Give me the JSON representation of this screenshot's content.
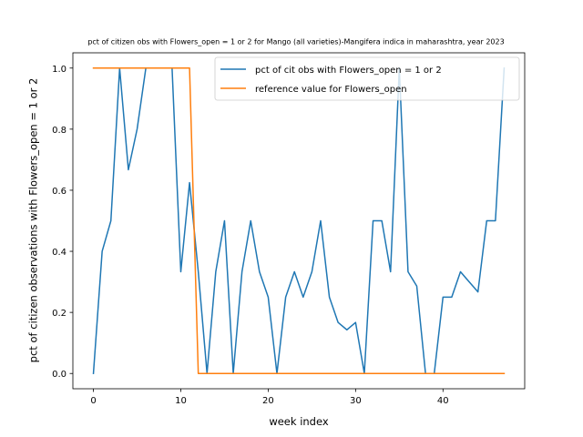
{
  "chart_data": {
    "type": "line",
    "title": "pct of citizen obs with Flowers_open = 1 or 2 for Mango (all varieties)-Mangifera indica in maharashtra, year 2023",
    "xlabel": "week index",
    "ylabel": "pct of citizen observations with Flowers_open = 1 or 2",
    "xlim": [
      -2.35,
      49.35
    ],
    "ylim": [
      -0.05,
      1.05
    ],
    "xticks": [
      0,
      10,
      20,
      30,
      40
    ],
    "yticks": [
      0.0,
      0.2,
      0.4,
      0.6,
      0.8,
      1.0
    ],
    "xtick_labels": [
      "0",
      "10",
      "20",
      "30",
      "40"
    ],
    "ytick_labels": [
      "0.0",
      "0.2",
      "0.4",
      "0.6",
      "0.8",
      "1.0"
    ],
    "legend_position": "upper-right",
    "series": [
      {
        "name": "pct of cit obs with Flowers_open = 1 or 2",
        "color": "#1f77b4",
        "x": [
          0,
          1,
          2,
          3,
          4,
          5,
          6,
          7,
          8,
          9,
          10,
          11,
          12,
          13,
          14,
          15,
          16,
          17,
          18,
          19,
          20,
          21,
          22,
          23,
          24,
          25,
          26,
          27,
          28,
          29,
          30,
          31,
          32,
          33,
          34,
          35,
          36,
          37,
          38,
          39,
          40,
          41,
          42,
          43,
          44,
          45,
          46,
          47
        ],
        "values": [
          0.0,
          0.4,
          0.5,
          1.0,
          0.667,
          0.8,
          1.0,
          1.0,
          1.0,
          1.0,
          0.333,
          0.625,
          0.333,
          0.0,
          0.333,
          0.5,
          0.0,
          0.333,
          0.5,
          0.333,
          0.25,
          0.0,
          0.25,
          0.333,
          0.25,
          0.333,
          0.5,
          0.25,
          0.167,
          0.143,
          0.167,
          0.0,
          0.5,
          0.5,
          0.333,
          1.0,
          0.333,
          0.286,
          0.0,
          0.0,
          0.25,
          0.25,
          0.333,
          0.3,
          0.267,
          0.5,
          0.5,
          1.0
        ]
      },
      {
        "name": "reference value for Flowers_open",
        "color": "#ff7f0e",
        "x": [
          0,
          1,
          2,
          3,
          4,
          5,
          6,
          7,
          8,
          9,
          10,
          11,
          12,
          13,
          14,
          15,
          16,
          17,
          18,
          19,
          20,
          21,
          22,
          23,
          24,
          25,
          26,
          27,
          28,
          29,
          30,
          31,
          32,
          33,
          34,
          35,
          36,
          37,
          38,
          39,
          40,
          41,
          42,
          43,
          44,
          45,
          46,
          47
        ],
        "values": [
          1,
          1,
          1,
          1,
          1,
          1,
          1,
          1,
          1,
          1,
          1,
          1,
          0,
          0,
          0,
          0,
          0,
          0,
          0,
          0,
          0,
          0,
          0,
          0,
          0,
          0,
          0,
          0,
          0,
          0,
          0,
          0,
          0,
          0,
          0,
          0,
          0,
          0,
          0,
          0,
          0,
          0,
          0,
          0,
          0,
          0,
          0,
          0
        ]
      }
    ]
  }
}
